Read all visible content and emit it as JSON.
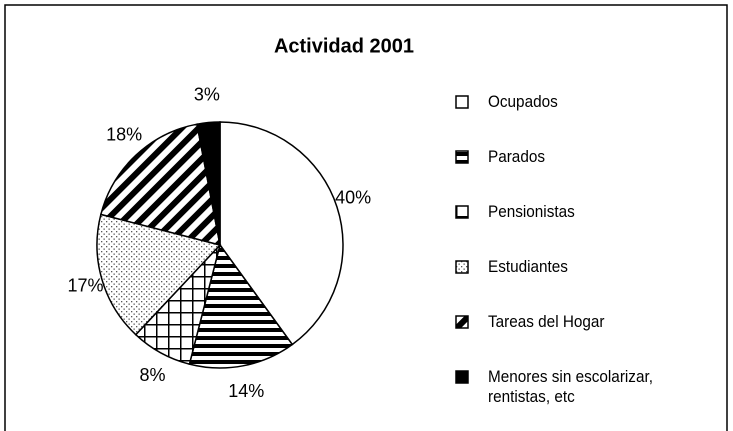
{
  "chart_data": {
    "type": "pie",
    "title": "Actividad 2001",
    "categories": [
      "Ocupados",
      "Parados",
      "Pensionistas",
      "Estudiantes",
      "Tareas del Hogar",
      "Menores sin escolarizar, rentistas, etc"
    ],
    "values": [
      40,
      14,
      8,
      17,
      18,
      3
    ],
    "value_labels": [
      "40%",
      "14%",
      "8%",
      "17%",
      "18%",
      "3%"
    ]
  }
}
